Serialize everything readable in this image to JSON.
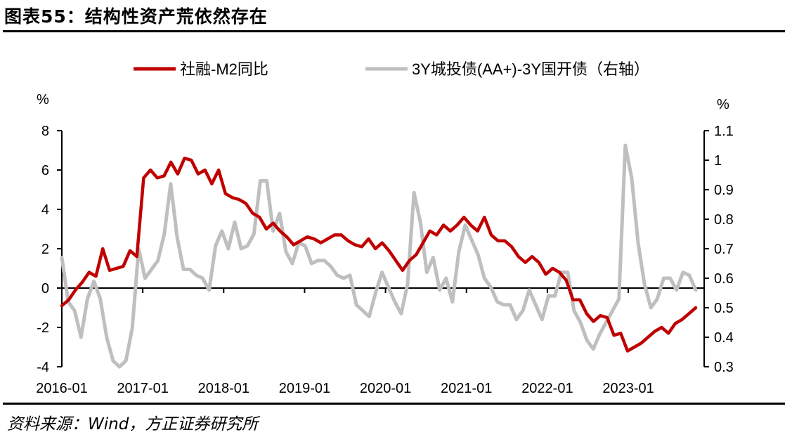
{
  "figure": {
    "title": "图表55：结构性资产荒依然存在",
    "source": "资料来源：Wind，方正证券研究所"
  },
  "colors": {
    "series_left": "#C00000",
    "series_right": "#BFBFBF",
    "axis": "#000000"
  },
  "chart_data": {
    "type": "line",
    "legend_position": "top",
    "grid": false,
    "y_left": {
      "unit_label": "%",
      "ylim": [
        -4,
        8
      ],
      "ticks": [
        "8",
        "6",
        "4",
        "2",
        "0",
        "-2",
        "-4"
      ]
    },
    "y_right": {
      "unit_label": "%",
      "ylim": [
        0.3,
        1.1
      ],
      "ticks": [
        "1.1",
        "1",
        "0.9",
        "0.8",
        "0.7",
        "0.6",
        "0.5",
        "0.4",
        "0.3"
      ]
    },
    "x_ticks": [
      "2016-01",
      "2017-01",
      "2018-01",
      "2019-01",
      "2020-01",
      "2021-01",
      "2022-01",
      "2023-01"
    ],
    "x_start": "2016-01",
    "x_end": "2023-11",
    "series": [
      {
        "name": "社融-M2同比",
        "axis": "left",
        "values": [
          -0.9,
          -0.6,
          -0.1,
          0.3,
          0.8,
          0.6,
          2.0,
          0.9,
          1.0,
          1.1,
          1.9,
          1.6,
          5.6,
          6.0,
          5.6,
          5.7,
          6.4,
          5.8,
          6.6,
          6.5,
          5.8,
          6.0,
          5.3,
          6.0,
          4.8,
          4.6,
          4.5,
          4.3,
          3.8,
          3.6,
          3.0,
          3.3,
          2.9,
          2.6,
          2.2,
          2.4,
          2.6,
          2.5,
          2.3,
          2.5,
          2.7,
          2.7,
          2.4,
          2.2,
          2.1,
          2.5,
          2.0,
          2.3,
          1.9,
          1.4,
          0.9,
          1.4,
          1.7,
          2.3,
          2.9,
          2.7,
          3.2,
          2.9,
          3.2,
          3.6,
          3.2,
          2.9,
          3.6,
          2.7,
          2.4,
          2.4,
          2.1,
          1.6,
          1.3,
          1.6,
          1.3,
          0.7,
          1.0,
          0.8,
          0.4,
          -0.6,
          -0.6,
          -1.3,
          -1.7,
          -1.4,
          -1.5,
          -2.4,
          -2.3,
          -3.2,
          -3.0,
          -2.8,
          -2.5,
          -2.2,
          -2.0,
          -2.3,
          -1.8,
          -1.6,
          -1.3,
          -1.0
        ]
      },
      {
        "name": "3Y城投债(AA+)-3Y国开债（右轴）",
        "axis": "right",
        "values": [
          0.67,
          0.52,
          0.49,
          0.4,
          0.53,
          0.59,
          0.53,
          0.4,
          0.32,
          0.3,
          0.32,
          0.43,
          0.7,
          0.6,
          0.63,
          0.66,
          0.75,
          0.92,
          0.74,
          0.63,
          0.63,
          0.61,
          0.6,
          0.56,
          0.71,
          0.76,
          0.7,
          0.79,
          0.7,
          0.71,
          0.75,
          0.93,
          0.93,
          0.76,
          0.82,
          0.69,
          0.65,
          0.72,
          0.71,
          0.65,
          0.66,
          0.66,
          0.64,
          0.61,
          0.6,
          0.61,
          0.51,
          0.49,
          0.47,
          0.55,
          0.62,
          0.57,
          0.52,
          0.48,
          0.58,
          0.89,
          0.79,
          0.62,
          0.67,
          0.56,
          0.6,
          0.52,
          0.69,
          0.78,
          0.73,
          0.68,
          0.6,
          0.57,
          0.52,
          0.51,
          0.51,
          0.46,
          0.49,
          0.56,
          0.51,
          0.46,
          0.54,
          0.54,
          0.62,
          0.62,
          0.49,
          0.45,
          0.39,
          0.36,
          0.41,
          0.45,
          0.49,
          0.53,
          1.05,
          0.94,
          0.72,
          0.58,
          0.5,
          0.53,
          0.6,
          0.6,
          0.56,
          0.62,
          0.61,
          0.56
        ]
      }
    ]
  }
}
